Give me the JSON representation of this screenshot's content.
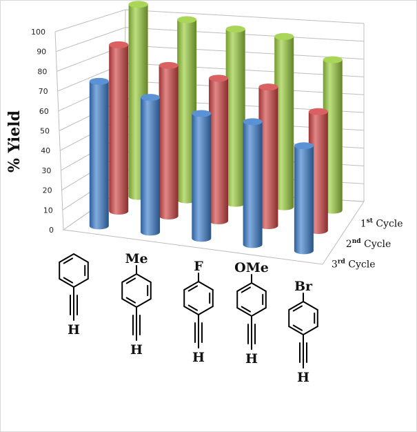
{
  "chart_data": {
    "type": "bar",
    "subtype": "3d-cylinder",
    "ylabel": "% Yield",
    "ylim": [
      0,
      100
    ],
    "yticks": [
      0,
      10,
      20,
      30,
      40,
      50,
      60,
      70,
      80,
      90,
      100
    ],
    "categories": [
      "H",
      "Me",
      "F",
      "OMe",
      "Br"
    ],
    "series": [
      {
        "name": "1st Cycle",
        "base": "1",
        "sup": "st",
        "rest": " Cycle",
        "color": "#9acd3c",
        "values": [
          97,
          91,
          88,
          86,
          76
        ]
      },
      {
        "name": "2nd Cycle",
        "base": "2",
        "sup": "nd",
        "rest": " Cycle",
        "color": "#d24545",
        "values": [
          84,
          76,
          72,
          70,
          60
        ]
      },
      {
        "name": "3rd Cycle",
        "base": "3",
        "sup": "rd",
        "rest": " Cycle",
        "color": "#3d7fce",
        "values": [
          73,
          68,
          63,
          62,
          53
        ]
      }
    ],
    "grid": true
  },
  "substrates": [
    {
      "substituent": "",
      "terminal": "H"
    },
    {
      "substituent": "Me",
      "terminal": "H"
    },
    {
      "substituent": "F",
      "terminal": "H"
    },
    {
      "substituent": "OMe",
      "terminal": "H"
    },
    {
      "substituent": "Br",
      "terminal": "H"
    }
  ]
}
